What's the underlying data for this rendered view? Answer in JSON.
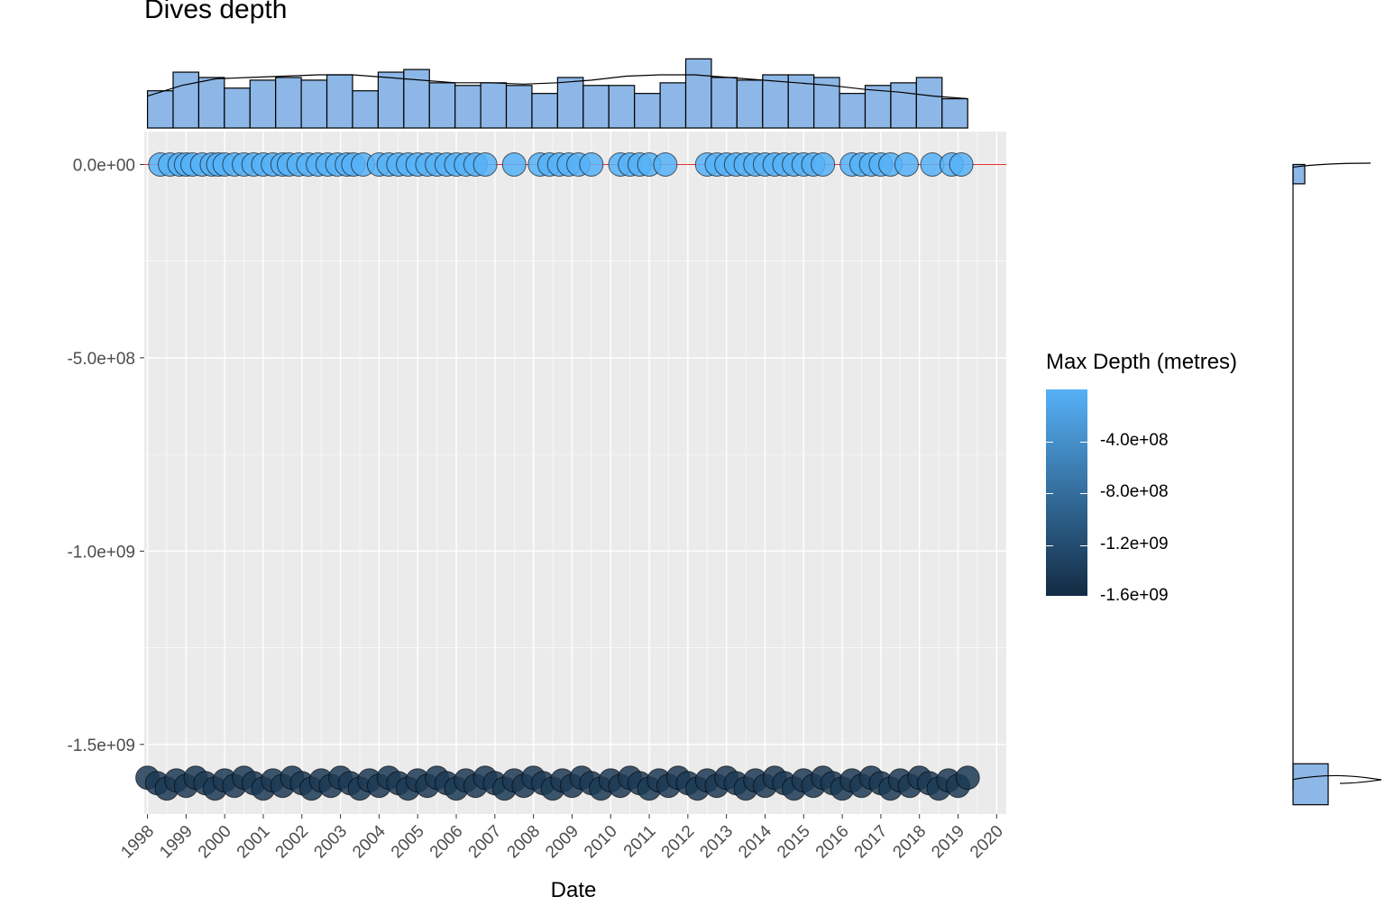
{
  "title": "Dives depth",
  "legend": {
    "title": "Max Depth (metres)",
    "labels": [
      "-4.0e+08",
      "-8.0e+08",
      "-1.2e+09",
      "-1.6e+09"
    ],
    "color_high": "#56B1F7",
    "color_low": "#132B43"
  },
  "colors": {
    "panel_background": "#EBEBEB",
    "gridline": "#FFFFFF",
    "hist_fill": "#8DB7E6",
    "hline": "#E03030",
    "point_light": "#56B1F7",
    "point_dark": "#1C3A55"
  },
  "chart_data": {
    "type": "scatter",
    "title": "Dives depth",
    "xlabel": "Date",
    "ylabel": "",
    "x_ticks": [
      "1998",
      "1999",
      "2000",
      "2001",
      "2002",
      "2003",
      "2004",
      "2005",
      "2006",
      "2007",
      "2008",
      "2009",
      "2010",
      "2011",
      "2012",
      "2013",
      "2014",
      "2015",
      "2016",
      "2017",
      "2018",
      "2019",
      "2020"
    ],
    "y_ticks": [
      "0.0e+00",
      "-5.0e+08",
      "-1.0e+09",
      "-1.5e+09"
    ],
    "y_tick_values": [
      0,
      -500000000,
      -1000000000,
      -1500000000
    ],
    "xlim": [
      "1997-12-01",
      "2020-04-01"
    ],
    "ylim": [
      -1680000000,
      85000000
    ],
    "hline": 0,
    "grid": true,
    "legend_position": "right",
    "color_scale": {
      "name": "Max Depth (metres)",
      "min": -1600000000,
      "max": 0
    },
    "series": [
      {
        "group": "near-zero depth",
        "y": 0,
        "x": [
          "1998-05",
          "1998-08",
          "1998-11",
          "1999-01",
          "1999-03",
          "1999-06",
          "1999-09",
          "1999-11",
          "2000-01",
          "2000-04",
          "2000-07",
          "2000-10",
          "2001-01",
          "2001-04",
          "2001-07",
          "2001-09",
          "2001-12",
          "2002-03",
          "2002-06",
          "2002-09",
          "2002-12",
          "2003-03",
          "2003-05",
          "2003-08",
          "2004-01",
          "2004-04",
          "2004-07",
          "2004-10",
          "2005-01",
          "2005-04",
          "2005-07",
          "2005-10",
          "2006-01",
          "2006-04",
          "2006-07",
          "2006-10",
          "2007-07",
          "2008-03",
          "2008-06",
          "2008-09",
          "2008-12",
          "2009-03",
          "2009-07",
          "2010-04",
          "2010-07",
          "2010-10",
          "2011-01",
          "2011-06",
          "2012-07",
          "2012-10",
          "2013-01",
          "2013-04",
          "2013-07",
          "2013-10",
          "2014-01",
          "2014-04",
          "2014-07",
          "2014-10",
          "2015-01",
          "2015-04",
          "2015-07",
          "2016-04",
          "2016-07",
          "2016-10",
          "2017-01",
          "2017-04",
          "2017-09",
          "2018-05",
          "2018-11",
          "2019-02"
        ]
      },
      {
        "group": "deep",
        "y": -1600000000,
        "x": [
          "1998-01",
          "1998-04",
          "1998-07",
          "1998-10",
          "1999-01",
          "1999-04",
          "1999-07",
          "1999-10",
          "2000-01",
          "2000-04",
          "2000-07",
          "2000-10",
          "2001-01",
          "2001-04",
          "2001-07",
          "2001-10",
          "2002-01",
          "2002-04",
          "2002-07",
          "2002-10",
          "2003-01",
          "2003-04",
          "2003-07",
          "2003-10",
          "2004-01",
          "2004-04",
          "2004-07",
          "2004-10",
          "2005-01",
          "2005-04",
          "2005-07",
          "2005-10",
          "2006-01",
          "2006-04",
          "2006-07",
          "2006-10",
          "2007-01",
          "2007-04",
          "2007-07",
          "2007-10",
          "2008-01",
          "2008-04",
          "2008-07",
          "2008-10",
          "2009-01",
          "2009-04",
          "2009-07",
          "2009-10",
          "2010-01",
          "2010-04",
          "2010-07",
          "2010-10",
          "2011-01",
          "2011-04",
          "2011-07",
          "2011-10",
          "2012-01",
          "2012-04",
          "2012-07",
          "2012-10",
          "2013-01",
          "2013-04",
          "2013-07",
          "2013-10",
          "2014-01",
          "2014-04",
          "2014-07",
          "2014-10",
          "2015-01",
          "2015-04",
          "2015-07",
          "2015-10",
          "2016-01",
          "2016-04",
          "2016-07",
          "2016-10",
          "2017-01",
          "2017-04",
          "2017-07",
          "2017-10",
          "2018-01",
          "2018-04",
          "2018-07",
          "2018-10",
          "2019-01",
          "2019-04"
        ]
      }
    ],
    "top_histogram": {
      "type": "histogram",
      "bin_start": "1998-01",
      "bin_end": "2019-04",
      "counts": [
        14,
        21,
        19,
        15,
        18,
        19,
        18,
        20,
        14,
        21,
        22,
        17,
        16,
        17,
        16,
        13,
        19,
        16,
        16,
        13,
        17,
        26,
        19,
        18,
        20,
        20,
        19,
        13,
        16,
        17,
        19,
        11
      ],
      "density_curve": [
        12,
        16,
        18.5,
        19,
        19.5,
        20,
        20,
        19,
        18,
        17,
        17,
        16.5,
        17,
        18,
        19.5,
        20,
        20,
        19,
        18,
        17,
        16,
        14.5,
        13.5,
        12,
        11
      ]
    },
    "right_histogram": {
      "type": "histogram",
      "orientation": "horizontal",
      "bins": [
        {
          "y_range": [
            -50000000,
            0
          ],
          "count": 1
        },
        {
          "y_range": [
            -1600000000,
            -1550000000
          ],
          "count": 3
        }
      ]
    }
  }
}
